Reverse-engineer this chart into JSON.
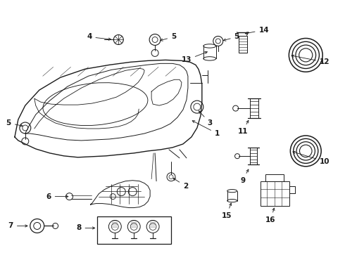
{
  "bg_color": "#ffffff",
  "line_color": "#1a1a1a",
  "fig_width": 4.9,
  "fig_height": 3.6,
  "dpi": 100,
  "lw": 0.7,
  "font_size": 7.5
}
